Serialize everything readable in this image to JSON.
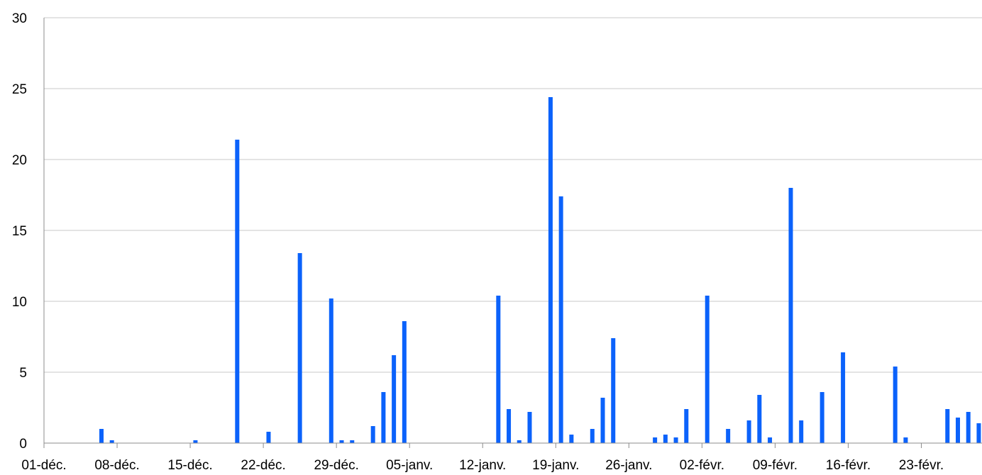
{
  "chart_data": {
    "type": "bar",
    "title": "",
    "xlabel": "",
    "ylabel": "",
    "ylim": [
      0,
      30
    ],
    "y_ticks": [
      0,
      5,
      10,
      15,
      20,
      25,
      30
    ],
    "grid": true,
    "legend": "none",
    "color": "#0b62fb",
    "x_start": "01-déc.",
    "x_ticks": [
      "01-déc.",
      "08-déc.",
      "15-déc.",
      "22-déc.",
      "29-déc.",
      "05-janv.",
      "12-janv.",
      "19-janv.",
      "26-janv.",
      "02-févr.",
      "09-févr.",
      "16-févr.",
      "23-févr."
    ],
    "series": [
      {
        "dates": [
          "06-déc.",
          "07-déc.",
          "15-déc.",
          "19-déc.",
          "22-déc.",
          "25-déc.",
          "28-déc.",
          "29-déc.",
          "30-déc.",
          "01-janv.",
          "02-janv.",
          "03-janv.",
          "04-janv.",
          "13-janv.",
          "14-janv.",
          "15-janv.",
          "16-janv.",
          "18-janv.",
          "19-janv.",
          "20-janv.",
          "22-janv.",
          "23-janv.",
          "24-janv.",
          "28-janv.",
          "29-janv.",
          "30-janv.",
          "31-janv.",
          "02-févr.",
          "04-févr.",
          "06-févr.",
          "07-févr.",
          "08-févr.",
          "10-févr.",
          "11-févr.",
          "13-févr.",
          "15-févr.",
          "20-févr.",
          "21-févr.",
          "25-févr.",
          "26-févr.",
          "27-févr.",
          "28-févr."
        ],
        "values": [
          1.0,
          0.2,
          0.2,
          21.4,
          0.8,
          13.4,
          10.2,
          0.2,
          0.2,
          1.2,
          3.6,
          6.2,
          8.6,
          10.4,
          2.4,
          0.2,
          2.2,
          24.4,
          17.4,
          0.6,
          1.0,
          3.2,
          7.4,
          0.4,
          0.6,
          0.4,
          2.4,
          10.4,
          1.0,
          1.6,
          3.4,
          0.4,
          18.0,
          1.6,
          3.6,
          6.4,
          5.4,
          0.4,
          2.4,
          1.8,
          2.2,
          1.4
        ]
      }
    ]
  }
}
